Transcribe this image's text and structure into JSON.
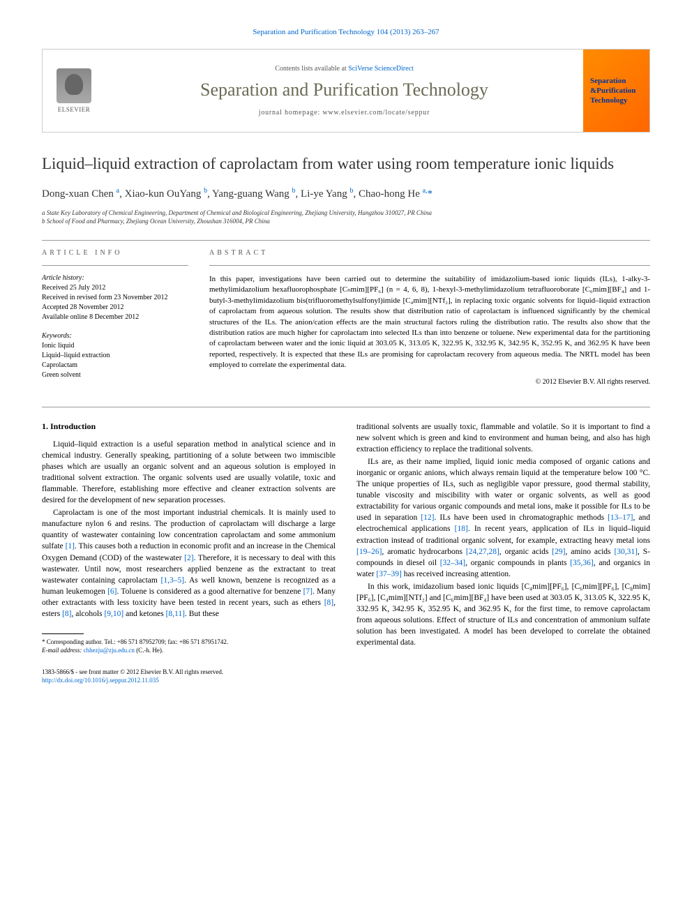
{
  "header": {
    "citation": "Separation and Purification Technology 104 (2013) 263–267",
    "contents_prefix": "Contents lists available at ",
    "contents_link": "SciVerse ScienceDirect",
    "journal_name": "Separation and Purification Technology",
    "homepage_prefix": "journal homepage: ",
    "homepage_url": "www.elsevier.com/locate/seppur",
    "publisher": "ELSEVIER",
    "cover_line1": "Separation",
    "cover_line2": "&Purification",
    "cover_line3": "Technology"
  },
  "title": "Liquid–liquid extraction of caprolactam from water using room temperature ionic liquids",
  "authors_html": "Dong-xuan Chen <sup>a</sup>, Xiao-kun OuYang <sup>b</sup>, Yang-guang Wang <sup>b</sup>, Li-ye Yang <sup>b</sup>, Chao-hong He <sup>a,</sup><span class='asterisk'>*</span>",
  "affiliations": {
    "a": "a State Key Laboratory of Chemical Engineering, Department of Chemical and Biological Engineering, Zhejiang University, Hangzhou 310027, PR China",
    "b": "b School of Food and Pharmacy, Zhejiang Ocean University, Zhoushan 316004, PR China"
  },
  "article_info": {
    "label": "ARTICLE INFO",
    "history_label": "Article history:",
    "history": [
      "Received 25 July 2012",
      "Received in revised form 23 November 2012",
      "Accepted 28 November 2012",
      "Available online 8 December 2012"
    ],
    "keywords_label": "Keywords:",
    "keywords": [
      "Ionic liquid",
      "Liquid–liquid extraction",
      "Caprolactam",
      "Green solvent"
    ]
  },
  "abstract": {
    "label": "ABSTRACT",
    "text": "In this paper, investigations have been carried out to determine the suitability of imidazolium-based ionic liquids (ILs), 1-alky-3-methylimidazolium hexafluorophosphate [Cₙmim][PF₆] (n = 4, 6, 8), 1-hexyl-3-methylimidazolium tetrafluoroborate [C₆mim][BF₄] and 1-butyl-3-methylimidazolium bis(trifluoromethylsulfonyl)imide [C₄mim][NTf₂], in replacing toxic organic solvents for liquid–liquid extraction of caprolactam from aqueous solution. The results show that distribution ratio of caprolactam is influenced significantly by the chemical structures of the ILs. The anion/cation effects are the main structural factors ruling the distribution ratio. The results also show that the distribution ratios are much higher for caprolactam into selected ILs than into benzene or toluene. New experimental data for the partitioning of caprolactam between water and the ionic liquid at 303.05 K, 313.05 K, 322.95 K, 332.95 K, 342.95 K, 352.95 K, and 362.95 K have been reported, respectively. It is expected that these ILs are promising for caprolactam recovery from aqueous media. The NRTL model has been employed to correlate the experimental data.",
    "copyright": "© 2012 Elsevier B.V. All rights reserved."
  },
  "body": {
    "section_heading": "1. Introduction",
    "left_paras": [
      "Liquid–liquid extraction is a useful separation method in analytical science and in chemical industry. Generally speaking, partitioning of a solute between two immiscible phases which are usually an organic solvent and an aqueous solution is employed in traditional solvent extraction. The organic solvents used are usually volatile, toxic and flammable. Therefore, establishing more effective and cleaner extraction solvents are desired for the development of new separation processes.",
      "Caprolactam is one of the most important industrial chemicals. It is mainly used to manufacture nylon 6 and resins. The production of caprolactam will discharge a large quantity of wastewater containing low concentration caprolactam and some ammonium sulfate <span class='ref'>[1]</span>. This causes both a reduction in economic profit and an increase in the Chemical Oxygen Demand (COD) of the wastewater <span class='ref'>[2]</span>. Therefore, it is necessary to deal with this wastewater. Until now, most researchers applied benzene as the extractant to treat wastewater containing caprolactam <span class='ref'>[1,3–5]</span>. As well known, benzene is recognized as a human leukemogen <span class='ref'>[6]</span>. Toluene is considered as a good alternative for benzene <span class='ref'>[7]</span>. Many other extractants with less toxicity have been tested in recent years, such as ethers <span class='ref'>[8]</span>, esters <span class='ref'>[8]</span>, alcohols <span class='ref'>[9,10]</span> and ketones <span class='ref'>[8,11]</span>. But these"
    ],
    "right_paras": [
      "traditional solvents are usually toxic, flammable and volatile. So it is important to find a new solvent which is green and kind to environment and human being, and also has high extraction efficiency to replace the traditional solvents.",
      "ILs are, as their name implied, liquid ionic media composed of organic cations and inorganic or organic anions, which always remain liquid at the temperature below 100 °C. The unique properties of ILs, such as negligible vapor pressure, good thermal stability, tunable viscosity and miscibility with water or organic solvents, as well as good extractability for various organic compounds and metal ions, make it possible for ILs to be used in separation <span class='ref'>[12]</span>. ILs have been used in chromatographic methods <span class='ref'>[13–17]</span>, and electrochemical applications <span class='ref'>[18]</span>. In recent years, application of ILs in liquid–liquid extraction instead of traditional organic solvent, for example, extracting heavy metal ions <span class='ref'>[19–26]</span>, aromatic hydrocarbons <span class='ref'>[24,27,28]</span>, organic acids <span class='ref'>[29]</span>, amino acids <span class='ref'>[30,31]</span>, S-compounds in diesel oil <span class='ref'>[32–34]</span>, organic compounds in plants <span class='ref'>[35,36]</span>, and organics in water <span class='ref'>[37–39]</span> has received increasing attention.",
      "In this work, imidazolium based ionic liquids [C₄mim][PF₆], [C₆mim][PF₆], [C₈mim][PF₆], [C₄mim][NTf₂] and [C₆mim][BF₄] have been used at 303.05 K, 313.05 K, 322.95 K, 332.95 K, 342.95 K, 352.95 K, and 362.95 K, for the first time, to remove caprolactam from aqueous solutions. Effect of structure of ILs and concentration of ammonium sulfate solution has been investigated. A model has been developed to correlate the obtained experimental data."
    ]
  },
  "footnote": {
    "corr": "* Corresponding author. Tel.: +86 571 87952709; fax: +86 571 87951742.",
    "email_label": "E-mail address: ",
    "email": "chhezju@zju.edu.cn",
    "email_suffix": " (C.-h. He)."
  },
  "bottom": {
    "issn": "1383-5866/$ - see front matter © 2012 Elsevier B.V. All rights reserved.",
    "doi_url": "http://dx.doi.org/10.1016/j.seppur.2012.11.035"
  },
  "colors": {
    "link": "#0066cc",
    "journal_heading": "#6a6a55",
    "cover_bg_start": "#ff8c00",
    "cover_bg_end": "#ff6600",
    "cover_text": "#003399"
  }
}
